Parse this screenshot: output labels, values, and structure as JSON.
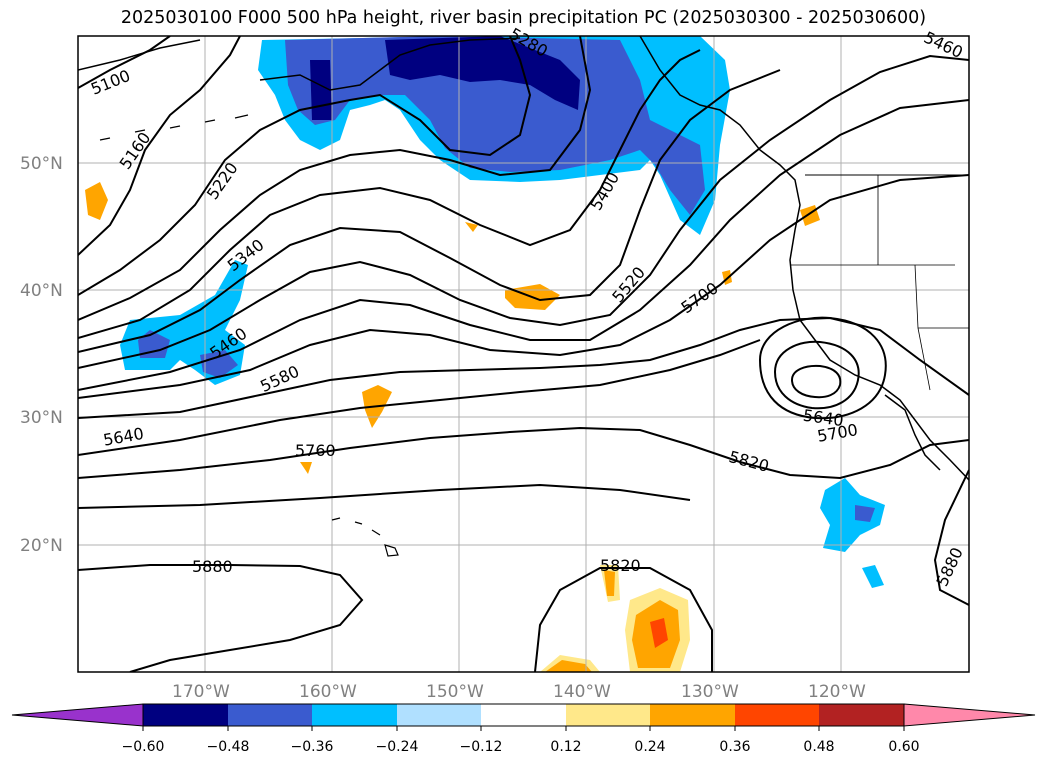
{
  "title": "2025030100 F000 500 hPa height, river basin precipitation PC (2025030300 - 2025030600)",
  "map": {
    "lat_labels": [
      "50°N",
      "40°N",
      "30°N",
      "20°N"
    ],
    "lon_labels": [
      "170°W",
      "160°W",
      "150°W",
      "140°W",
      "130°W",
      "120°W"
    ],
    "contour_labels": [
      "5100",
      "5160",
      "5220",
      "5340",
      "5400",
      "5460",
      "5520",
      "5580",
      "5640",
      "5700",
      "5760",
      "5820",
      "5880",
      "5280"
    ],
    "colors": {
      "coast": "#000000",
      "grid": "#b0b0b0",
      "neg_dark": "#000080",
      "neg_mid": "#3a5bcf",
      "neg_light": "#00bfff",
      "neg_pale": "#b0e0ff",
      "pos_pale": "#ffe88a",
      "pos_mid": "#ffa500",
      "pos_strong": "#ff4500"
    }
  },
  "colorbar": {
    "ticks": [
      "−0.60",
      "−0.48",
      "−0.36",
      "−0.24",
      "−0.12",
      "0.12",
      "0.24",
      "0.36",
      "0.48",
      "0.60"
    ],
    "colors": [
      "#9932cc",
      "#000080",
      "#3a5bcf",
      "#00bfff",
      "#b0e0ff",
      "#ffffff",
      "#ffe88a",
      "#ffa500",
      "#ff4500",
      "#b22222",
      "#ff88aa"
    ]
  }
}
